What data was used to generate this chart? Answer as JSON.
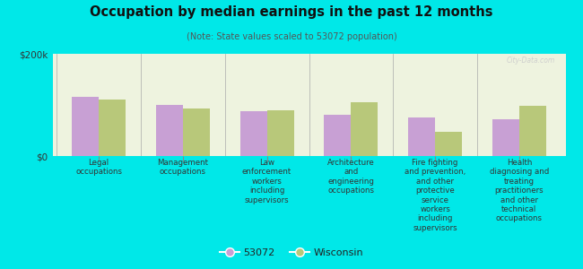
{
  "title": "Occupation by median earnings in the past 12 months",
  "subtitle": "(Note: State values scaled to 53072 population)",
  "background_color": "#00e8e8",
  "plot_bg_color": "#eef3df",
  "categories": [
    "Legal\noccupations",
    "Management\noccupations",
    "Law\nenforcement\nworkers\nincluding\nsupervisors",
    "Architecture\nand\nengineering\noccupations",
    "Fire fighting\nand prevention,\nand other\nprotective\nservice\nworkers\nincluding\nsupervisors",
    "Health\ndiagnosing and\ntreating\npractitioners\nand other\ntechnical\noccupations"
  ],
  "values_53072": [
    115000,
    100000,
    88000,
    80000,
    75000,
    72000
  ],
  "values_wisconsin": [
    110000,
    93000,
    90000,
    105000,
    48000,
    98000
  ],
  "color_53072": "#c8a0d4",
  "color_wisconsin": "#b8c87a",
  "ylim": [
    0,
    200000
  ],
  "ytick_labels": [
    "$0",
    "$200k"
  ],
  "legend_labels": [
    "53072",
    "Wisconsin"
  ],
  "bar_width": 0.32,
  "watermark": "City-Data.com"
}
